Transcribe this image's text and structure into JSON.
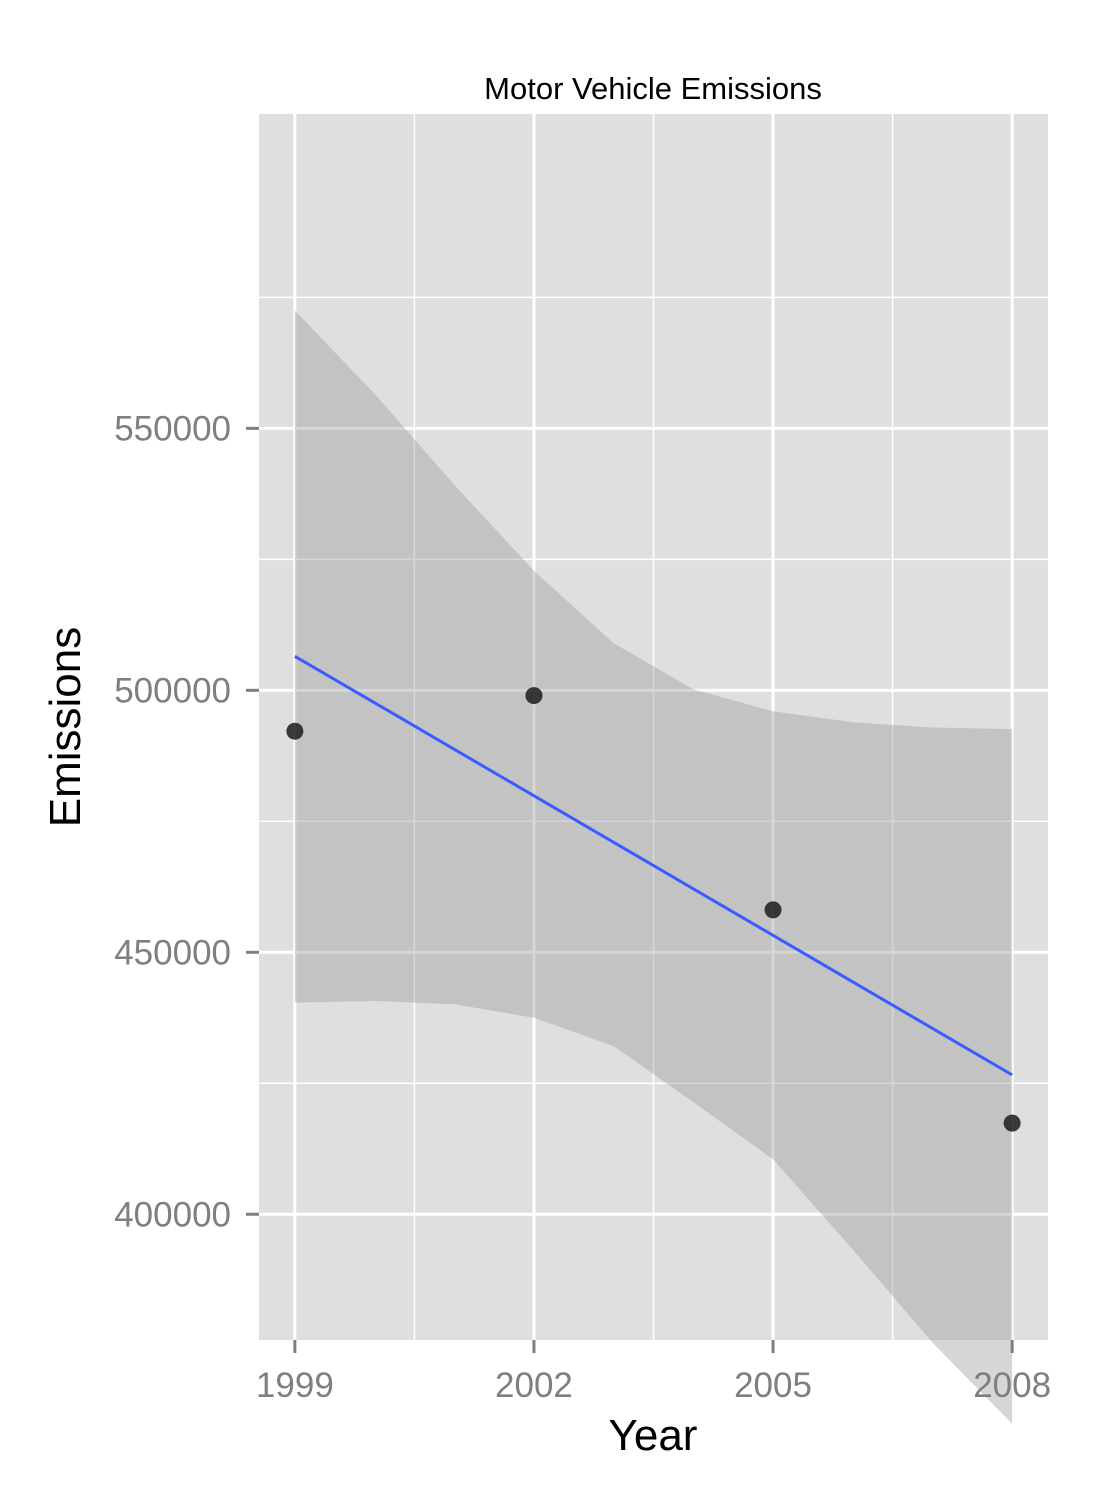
{
  "chart_data": {
    "type": "scatter",
    "title": "Motor Vehicle Emissions",
    "xlabel": "Year",
    "ylabel": "Emissions",
    "x_ticks": [
      "1999",
      "2002",
      "2005",
      "2008"
    ],
    "y_ticks": [
      "400000",
      "450000",
      "500000",
      "550000"
    ],
    "xlim": [
      1998.55,
      2008.45
    ],
    "ylim": [
      376000,
      610000
    ],
    "grid": true,
    "series": [
      {
        "points": [
          {
            "x": 1999,
            "y": 492200
          },
          {
            "x": 2002,
            "y": 499000
          },
          {
            "x": 2005,
            "y": 458100
          },
          {
            "x": 2008,
            "y": 417400
          }
        ]
      }
    ],
    "trend": {
      "method": "linear regression",
      "x": [
        1999,
        2008
      ],
      "y": [
        506500,
        426600
      ],
      "ci_x": [
        1999,
        2000,
        2001,
        2002,
        2003,
        2004,
        2005,
        2006,
        2007,
        2008
      ],
      "ci_upper": [
        572500,
        556600,
        539200,
        522800,
        509000,
        500200,
        496000,
        493900,
        492900,
        492600
      ],
      "ci_lower": [
        440400,
        440700,
        440100,
        437500,
        432100,
        421400,
        410500,
        393300,
        375500,
        360000
      ]
    },
    "colors": {
      "panel": "#dfdfdf",
      "grid": "#ffffff",
      "ribbon": "#999999",
      "line": "#3a5cff",
      "points": "#1c1c1c"
    }
  }
}
